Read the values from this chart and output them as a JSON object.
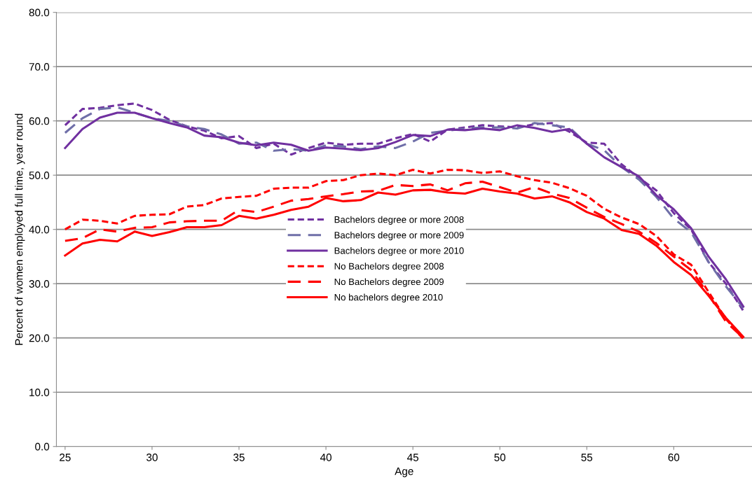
{
  "chart_data": {
    "type": "line",
    "xlabel": "Age",
    "ylabel": "Percent of women employed full time, year round",
    "x": [
      25,
      26,
      27,
      28,
      29,
      30,
      31,
      32,
      33,
      34,
      35,
      36,
      37,
      38,
      39,
      40,
      41,
      42,
      43,
      44,
      45,
      46,
      47,
      48,
      49,
      50,
      51,
      52,
      53,
      54,
      55,
      56,
      57,
      58,
      59,
      60,
      61,
      62,
      63,
      64
    ],
    "xlim": [
      24.5,
      64.5
    ],
    "xticks": [
      25,
      30,
      35,
      40,
      45,
      50,
      55,
      60
    ],
    "ylim": [
      0,
      80
    ],
    "yticks": [
      {
        "value": 0,
        "label": "0.0"
      },
      {
        "value": 10,
        "label": "10.0"
      },
      {
        "value": 20,
        "label": "20.0"
      },
      {
        "value": 30,
        "label": "30.0"
      },
      {
        "value": 40,
        "label": "40.0"
      },
      {
        "value": 50,
        "label": "50.0"
      },
      {
        "value": 60,
        "label": "60.0"
      },
      {
        "value": 70,
        "label": "70.0"
      },
      {
        "value": 80,
        "label": "80.0"
      }
    ],
    "grid": "y",
    "legend": "center",
    "marker": "none",
    "series": [
      {
        "name": "Bachelors degree or more 2008",
        "color": "#7030a0",
        "line_style": "dotted",
        "values": [
          59.2,
          62.2,
          62.4,
          62.9,
          63.2,
          62.0,
          60.2,
          59.0,
          58.2,
          56.8,
          57.2,
          55.0,
          55.8,
          53.8,
          55.0,
          56.0,
          55.6,
          55.8,
          55.8,
          56.8,
          57.6,
          56.2,
          58.4,
          58.8,
          59.2,
          59.0,
          58.8,
          59.4,
          59.6,
          58.0,
          56.0,
          55.8,
          52.0,
          49.5,
          47.2,
          43.0,
          40.0,
          34.0,
          30.0,
          25.0
        ]
      },
      {
        "name": "Bachelors degree or more 2009",
        "color": "#6f6fa8",
        "line_style": "dashed",
        "values": [
          57.8,
          60.5,
          62.2,
          62.5,
          61.5,
          60.5,
          60.0,
          59.0,
          58.5,
          57.5,
          55.8,
          56.0,
          54.5,
          54.8,
          54.5,
          55.5,
          55.3,
          54.8,
          55.3,
          55.0,
          56.2,
          57.8,
          58.2,
          58.6,
          58.8,
          58.8,
          58.6,
          59.6,
          59.2,
          58.8,
          55.8,
          54.6,
          51.5,
          49.2,
          46.0,
          42.0,
          39.5,
          34.0,
          29.5,
          25.5
        ]
      },
      {
        "name": "Bachelors degree or more 2010",
        "color": "#7030a0",
        "line_style": "solid",
        "values": [
          55.0,
          58.5,
          60.6,
          61.5,
          61.5,
          60.5,
          59.6,
          58.8,
          57.3,
          57.0,
          56.0,
          55.5,
          56.0,
          55.6,
          54.5,
          55.1,
          54.9,
          54.6,
          55.0,
          56.1,
          57.4,
          57.2,
          58.4,
          58.3,
          58.6,
          58.3,
          59.2,
          58.7,
          58.0,
          58.5,
          55.8,
          53.3,
          51.5,
          49.8,
          46.3,
          43.7,
          40.2,
          35.0,
          30.8,
          25.8
        ]
      },
      {
        "name": "No Bachelors degree 2008",
        "color": "#ff0000",
        "line_style": "dotted",
        "values": [
          40.0,
          41.8,
          41.6,
          41.1,
          42.5,
          42.7,
          42.8,
          44.2,
          44.5,
          45.7,
          46.0,
          46.2,
          47.5,
          47.7,
          47.7,
          48.9,
          49.1,
          50.0,
          50.3,
          50.0,
          51.0,
          50.3,
          51.0,
          50.9,
          50.4,
          50.7,
          49.8,
          49.1,
          48.6,
          47.6,
          46.2,
          43.8,
          42.2,
          41.0,
          38.8,
          35.4,
          33.5,
          28.5,
          23.5,
          19.8
        ]
      },
      {
        "name": "No Bachelors degree 2009",
        "color": "#ff0000",
        "line_style": "dashed",
        "values": [
          37.9,
          38.4,
          40.0,
          39.6,
          40.3,
          40.4,
          41.3,
          41.5,
          41.6,
          41.6,
          43.6,
          43.2,
          44.2,
          45.3,
          45.6,
          46.1,
          46.5,
          47.0,
          47.1,
          48.2,
          48.0,
          48.3,
          47.2,
          48.5,
          48.8,
          47.8,
          46.8,
          47.8,
          46.6,
          45.8,
          44.0,
          42.3,
          41.0,
          39.6,
          37.5,
          35.0,
          32.5,
          28.0,
          23.0,
          20.0
        ]
      },
      {
        "name": "No bachelors degree 2010",
        "color": "#ff0000",
        "line_style": "solid",
        "values": [
          35.2,
          37.4,
          38.1,
          37.8,
          39.6,
          38.8,
          39.5,
          40.4,
          40.4,
          40.8,
          42.5,
          42.0,
          42.7,
          43.6,
          44.2,
          45.8,
          45.2,
          45.4,
          46.8,
          46.4,
          47.2,
          47.3,
          46.8,
          46.6,
          47.5,
          47.0,
          46.6,
          45.7,
          46.1,
          45.0,
          43.2,
          42.0,
          39.9,
          39.2,
          37.0,
          34.0,
          31.6,
          27.8,
          23.7,
          20.2
        ]
      }
    ]
  }
}
